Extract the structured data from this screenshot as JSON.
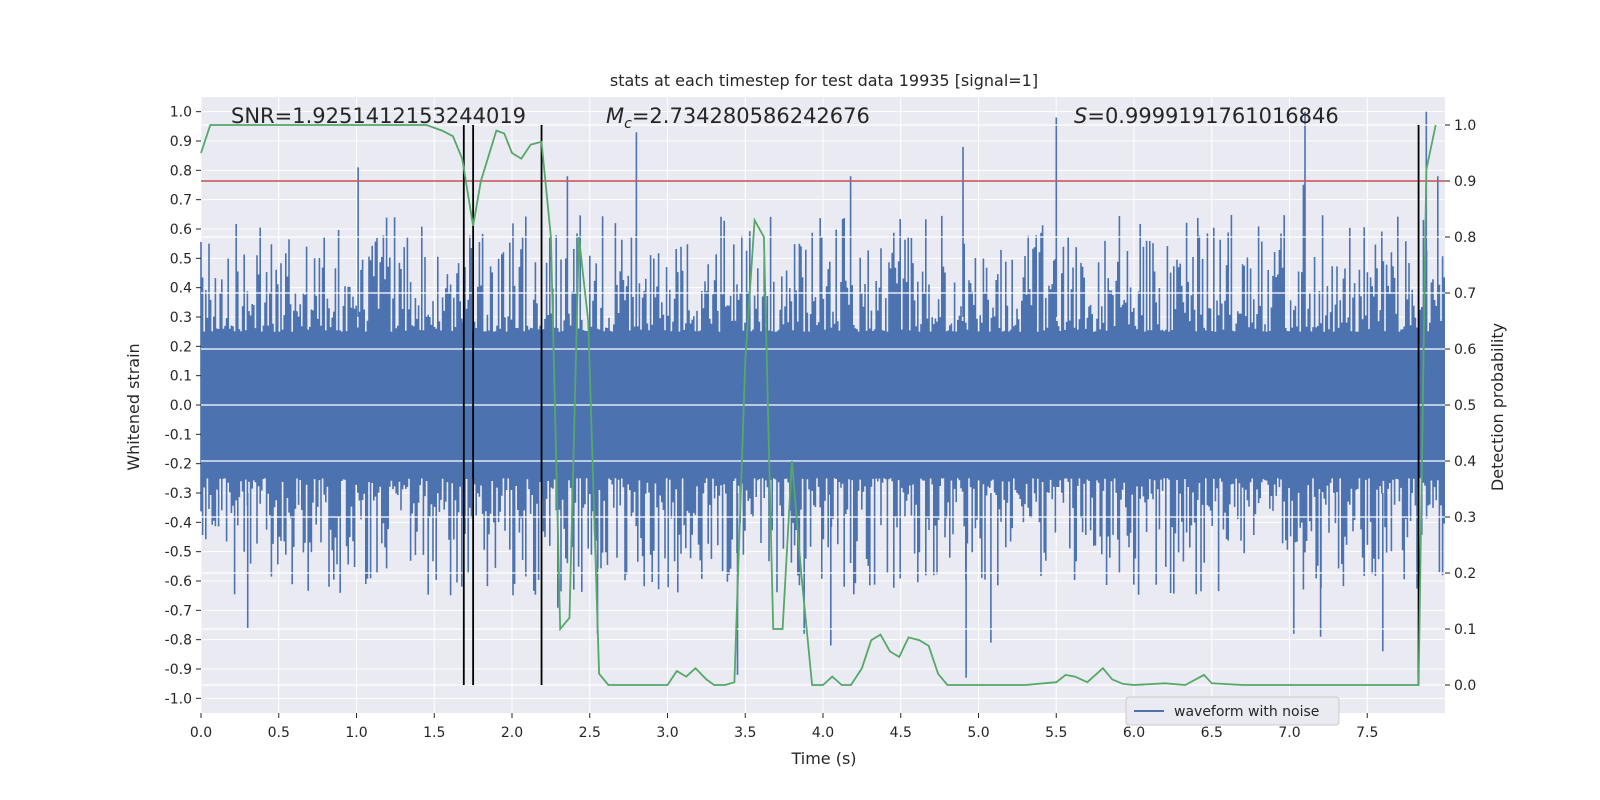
{
  "chart_data": {
    "type": "line",
    "title": "stats at each timestep for test data 19935 [signal=1]",
    "xlabel": "Time (s)",
    "ylabel_left": "Whitened strain",
    "ylabel_right": "Detection probability",
    "xlim": [
      0.0,
      8.0
    ],
    "ylim_left": [
      -1.05,
      1.05
    ],
    "ylim_right": [
      -0.05,
      1.05
    ],
    "x_ticks": [
      0.0,
      0.5,
      1.0,
      1.5,
      2.0,
      2.5,
      3.0,
      3.5,
      4.0,
      4.5,
      5.0,
      5.5,
      6.0,
      6.5,
      7.0,
      7.5
    ],
    "y_ticks_left": [
      1.0,
      0.9,
      0.8,
      0.7,
      0.6,
      0.5,
      0.4,
      0.3,
      0.2,
      0.1,
      0.0,
      -0.1,
      -0.2,
      -0.3,
      -0.4,
      -0.5,
      -0.6,
      -0.7,
      -0.8,
      -0.9,
      -1.0
    ],
    "y_ticks_right": [
      1.0,
      0.9,
      0.8,
      0.7,
      0.6,
      0.5,
      0.4,
      0.3,
      0.2,
      0.1,
      0.0
    ],
    "x_tick_labels": [
      "0.0",
      "0.5",
      "1.0",
      "1.5",
      "2.0",
      "2.5",
      "3.0",
      "3.5",
      "4.0",
      "4.5",
      "5.0",
      "5.5",
      "6.0",
      "6.5",
      "7.0",
      "7.5"
    ],
    "y_tick_labels_left": [
      "1.0",
      "0.9",
      "0.8",
      "0.7",
      "0.6",
      "0.5",
      "0.4",
      "0.3",
      "0.2",
      "0.1",
      "0.0",
      "-0.1",
      "-0.2",
      "-0.3",
      "-0.4",
      "-0.5",
      "-0.6",
      "-0.7",
      "-0.8",
      "-0.9",
      "-1.0"
    ],
    "y_tick_labels_right": [
      "1.0",
      "0.9",
      "0.8",
      "0.7",
      "0.6",
      "0.5",
      "0.4",
      "0.3",
      "0.2",
      "0.1",
      "0.0"
    ],
    "annotations": {
      "snr": "SNR=1.9251412153244019",
      "mc_symbol": "M",
      "mc_subscript": "c",
      "mc_value": "=2.734280586242676",
      "s_symbol": "S",
      "s_value": "=0.9999191761016846"
    },
    "legend": {
      "label": "waveform with noise",
      "placement": "lower-right"
    },
    "threshold_right": 0.9,
    "vertical_markers": [
      1.69,
      1.75,
      2.19,
      7.83
    ],
    "waveform_envelope": {
      "description_free_series": "approx amplitude envelope of whitened strain",
      "core_upper": 0.25,
      "core_lower": -0.25,
      "typical_upper": 0.5,
      "typical_lower": -0.5,
      "spikes": [
        {
          "x": 1.01,
          "y": 0.81
        },
        {
          "x": 2.8,
          "y": 0.93
        },
        {
          "x": 4.9,
          "y": 0.88
        },
        {
          "x": 5.5,
          "y": 0.98
        },
        {
          "x": 7.1,
          "y": 1.0
        },
        {
          "x": 7.88,
          "y": 1.0
        },
        {
          "x": 3.45,
          "y": -0.92
        },
        {
          "x": 4.92,
          "y": -0.93
        },
        {
          "x": 0.3,
          "y": -0.76
        },
        {
          "x": 5.08,
          "y": -0.81
        },
        {
          "x": 7.6,
          "y": -0.84
        },
        {
          "x": 7.2,
          "y": -0.79
        },
        {
          "x": 4.05,
          "y": -0.82
        },
        {
          "x": 2.55,
          "y": -0.78
        }
      ]
    },
    "series": [
      {
        "name": "detection probability",
        "axis": "right",
        "color": "#55a868",
        "x": [
          0.0,
          0.06,
          0.12,
          0.5,
          1.0,
          1.45,
          1.55,
          1.62,
          1.68,
          1.75,
          1.8,
          1.9,
          1.95,
          2.0,
          2.06,
          2.12,
          2.19,
          2.25,
          2.31,
          2.37,
          2.43,
          2.49,
          2.56,
          2.62,
          2.7,
          2.9,
          3.0,
          3.06,
          3.12,
          3.18,
          3.25,
          3.3,
          3.37,
          3.43,
          3.5,
          3.56,
          3.62,
          3.68,
          3.74,
          3.8,
          3.86,
          3.93,
          4.0,
          4.06,
          4.12,
          4.18,
          4.25,
          4.31,
          4.37,
          4.43,
          4.49,
          4.55,
          4.62,
          4.68,
          4.74,
          4.8,
          4.86,
          4.93,
          5.0,
          5.3,
          5.5,
          5.56,
          5.62,
          5.7,
          5.8,
          5.86,
          5.93,
          6.0,
          6.2,
          6.33,
          6.45,
          6.5,
          6.7,
          7.0,
          7.5,
          7.83,
          7.88,
          7.94
        ],
        "y": [
          0.95,
          1.0,
          1.0,
          1.0,
          1.0,
          1.0,
          0.99,
          0.98,
          0.94,
          0.82,
          0.9,
          0.99,
          0.985,
          0.95,
          0.94,
          0.965,
          0.97,
          0.8,
          0.1,
          0.12,
          0.8,
          0.65,
          0.02,
          0.0,
          0.0,
          0.0,
          0.0,
          0.025,
          0.015,
          0.03,
          0.01,
          0.0,
          0.0,
          0.005,
          0.58,
          0.83,
          0.8,
          0.1,
          0.1,
          0.4,
          0.2,
          0.0,
          0.0,
          0.015,
          0.0,
          0.0,
          0.03,
          0.08,
          0.09,
          0.06,
          0.05,
          0.085,
          0.08,
          0.07,
          0.02,
          0.0,
          0.0,
          0.0,
          0.0,
          0.0,
          0.005,
          0.018,
          0.015,
          0.005,
          0.03,
          0.01,
          0.002,
          0.0,
          0.003,
          0.0,
          0.018,
          0.003,
          0.0,
          0.0,
          0.0,
          0.0,
          0.92,
          1.0
        ]
      }
    ]
  },
  "colors": {
    "axes_bg": "#eaeaf2",
    "grid": "#ffffff",
    "waveform": "#4c72b0",
    "probability": "#55a868",
    "threshold": "#c44e52",
    "marker": "#000000",
    "text": "#262626"
  }
}
